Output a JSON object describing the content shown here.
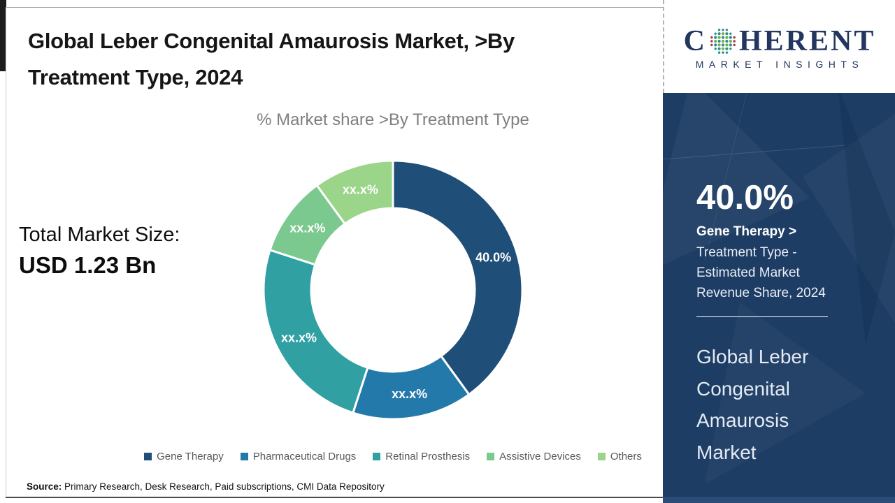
{
  "header": {
    "title_lines": [
      "Global Leber Congenital Amaurosis Market, >By",
      "Treatment Type, 2024"
    ]
  },
  "logo": {
    "brand_first_letter": "C",
    "brand_rest": "HERENT",
    "brand_sub": "MARKET INSIGHTS",
    "brand_color": "#23365e",
    "globe_icon": "dotted-globe"
  },
  "left_panel": {
    "total_label": "Total Market Size:",
    "total_value": "USD 1.23 Bn"
  },
  "chart_data": {
    "type": "pie",
    "donut": true,
    "title": "% Market share >By Treatment Type",
    "categories": [
      "Gene Therapy",
      "Pharmaceutical Drugs",
      "Retinal Prosthesis",
      "Assistive Devices",
      "Others"
    ],
    "values": [
      40,
      15,
      25,
      10,
      10
    ],
    "slice_labels": [
      "40.0%",
      "xx.x%",
      "xx.x%",
      "xx.x%",
      "xx.x%"
    ],
    "colors": [
      "#1f4e79",
      "#2379a9",
      "#30a0a3",
      "#7bc98e",
      "#9ad58a"
    ],
    "start_angle_deg": 0,
    "direction": "clockwise",
    "outer_radius": 185,
    "inner_radius": 117,
    "label_radius": 151,
    "legend_position": "bottom"
  },
  "sidebar": {
    "bg_color": "#1e3d64",
    "stat_value": "40.0%",
    "stat_label_bold": "Gene Therapy >",
    "stat_label_lines": [
      "Treatment Type -",
      "Estimated Market",
      "Revenue Share, 2024"
    ],
    "market_name_lines": [
      "Global Leber",
      "Congenital",
      "Amaurosis",
      "Market"
    ]
  },
  "footer": {
    "source_label": "Source:",
    "source_text": "Primary Research, Desk Research, Paid subscriptions, CMI Data Repository"
  }
}
